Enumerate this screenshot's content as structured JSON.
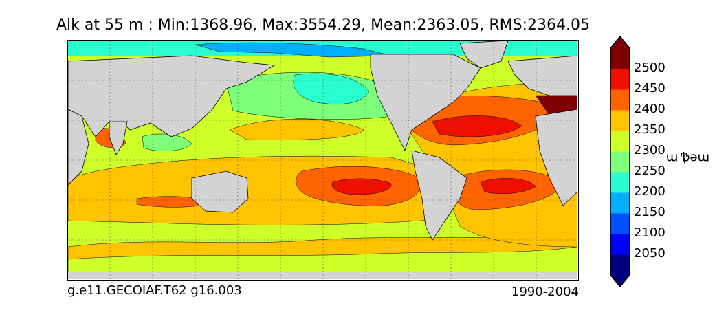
{
  "title": "Alk at 55 m : Min:1368.96, Max:3554.29, Mean:2363.05, RMS:2364.05",
  "caption_left": "g.e11.GECOIAF.T62 g16.003",
  "caption_right": "1990-2004",
  "colorbar": {
    "unit": "meq m",
    "unit_exponent": "−3",
    "ticks": [
      "2050",
      "2100",
      "2150",
      "2200",
      "2250",
      "2300",
      "2350",
      "2400",
      "2450",
      "2500"
    ],
    "colors": [
      "#00007f",
      "#0000ff",
      "#0050ff",
      "#00b0ff",
      "#29ffce",
      "#7dff7a",
      "#ceff29",
      "#ffc400",
      "#ff6400",
      "#ee0f00",
      "#7f0000"
    ],
    "land_color": "#d3d3d3",
    "extend": "both"
  }
}
